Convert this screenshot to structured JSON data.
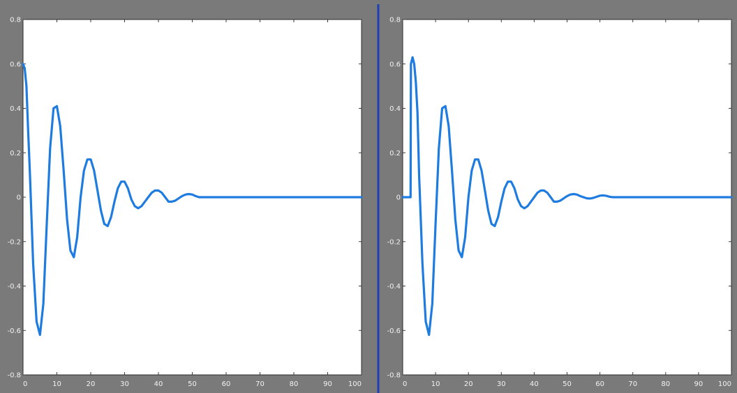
{
  "colors": {
    "series": "#1e7be0",
    "divider": "#1f3fb5",
    "frame": "#7a7a7a",
    "plot_bg": "#ffffff"
  },
  "chart_data": [
    {
      "type": "line",
      "title": "",
      "xlabel": "",
      "ylabel": "",
      "xlim": [
        0,
        100
      ],
      "ylim": [
        -0.8,
        0.8
      ],
      "xticks": [
        0,
        10,
        20,
        30,
        40,
        50,
        60,
        70,
        80,
        90,
        100
      ],
      "xtick_labels": [
        "0",
        "10",
        "20",
        "30",
        "40",
        "50",
        "60",
        "70",
        "80",
        "90",
        "100"
      ],
      "yticks": [
        0.8,
        0.6,
        0.4,
        0.2,
        0,
        -0.2,
        -0.4,
        -0.6,
        -0.8
      ],
      "ytick_labels": [
        "0.8",
        "0.6",
        "0.4",
        "0.2",
        "0",
        "-0.2",
        "-0.4",
        "-0.6",
        "-0.8"
      ],
      "grid": false,
      "series": [
        {
          "x": [
            0,
            0.5,
            1,
            1.5,
            2,
            3,
            4,
            5,
            6,
            7,
            8,
            9,
            10,
            11,
            12,
            13,
            14,
            15,
            16,
            17,
            18,
            19,
            20,
            21,
            22,
            23,
            24,
            25,
            26,
            27,
            28,
            29,
            30,
            31,
            32,
            33,
            34,
            35,
            36,
            37,
            38,
            39,
            40,
            41,
            42,
            43,
            44,
            45,
            46,
            47,
            48,
            49,
            50,
            51,
            52,
            53,
            55,
            100
          ],
          "y": [
            0.6,
            0.58,
            0.5,
            0.3,
            0.12,
            -0.3,
            -0.56,
            -0.62,
            -0.48,
            -0.12,
            0.22,
            0.4,
            0.41,
            0.32,
            0.12,
            -0.1,
            -0.24,
            -0.27,
            -0.18,
            0.0,
            0.12,
            0.17,
            0.17,
            0.12,
            0.03,
            -0.06,
            -0.12,
            -0.13,
            -0.09,
            -0.02,
            0.04,
            0.07,
            0.07,
            0.04,
            -0.01,
            -0.04,
            -0.05,
            -0.04,
            -0.02,
            0.0,
            0.02,
            0.03,
            0.03,
            0.02,
            0.0,
            -0.02,
            -0.02,
            -0.015,
            -0.005,
            0.005,
            0.012,
            0.014,
            0.012,
            0.005,
            0.0,
            0.0,
            0.0,
            0.0
          ]
        }
      ]
    },
    {
      "type": "line",
      "title": "",
      "xlabel": "",
      "ylabel": "",
      "xlim": [
        0,
        100
      ],
      "ylim": [
        -0.8,
        0.8
      ],
      "xticks": [
        0,
        10,
        20,
        30,
        40,
        50,
        60,
        70,
        80,
        90,
        100
      ],
      "xtick_labels": [
        "0",
        "10",
        "20",
        "30",
        "40",
        "50",
        "60",
        "70",
        "80",
        "90",
        "100"
      ],
      "yticks": [
        0.8,
        0.6,
        0.4,
        0.2,
        0,
        -0.2,
        -0.4,
        -0.6,
        -0.8
      ],
      "ytick_labels": [
        "0.8",
        "0.6",
        "0.4",
        "0.2",
        "0",
        "-0.2",
        "-0.4",
        "-0.6",
        "-0.8"
      ],
      "grid": false,
      "series": [
        {
          "x": [
            0,
            2.4,
            2.5,
            3,
            3.5,
            4,
            4.5,
            5,
            6,
            7,
            8,
            9,
            10,
            11,
            12,
            13,
            14,
            15,
            16,
            17,
            18,
            19,
            20,
            21,
            22,
            23,
            24,
            25,
            26,
            27,
            28,
            29,
            30,
            31,
            32,
            33,
            34,
            35,
            36,
            37,
            38,
            39,
            40,
            41,
            42,
            43,
            44,
            45,
            46,
            47,
            48,
            49,
            50,
            51,
            52,
            53,
            54,
            55,
            56,
            57,
            58,
            59,
            60,
            61,
            62,
            63,
            64,
            65,
            100
          ],
          "y": [
            0.0,
            0.0,
            0.6,
            0.63,
            0.6,
            0.52,
            0.38,
            0.1,
            -0.3,
            -0.56,
            -0.62,
            -0.48,
            -0.12,
            0.22,
            0.4,
            0.41,
            0.32,
            0.12,
            -0.1,
            -0.24,
            -0.27,
            -0.18,
            0.0,
            0.12,
            0.17,
            0.17,
            0.12,
            0.03,
            -0.06,
            -0.12,
            -0.13,
            -0.09,
            -0.02,
            0.04,
            0.07,
            0.07,
            0.04,
            -0.01,
            -0.04,
            -0.05,
            -0.04,
            -0.02,
            0.0,
            0.02,
            0.03,
            0.03,
            0.02,
            0.0,
            -0.02,
            -0.02,
            -0.015,
            -0.005,
            0.005,
            0.012,
            0.014,
            0.012,
            0.005,
            0.0,
            -0.005,
            -0.006,
            -0.003,
            0.002,
            0.007,
            0.008,
            0.006,
            0.002,
            0.0,
            0.0,
            0.0
          ]
        }
      ]
    }
  ]
}
